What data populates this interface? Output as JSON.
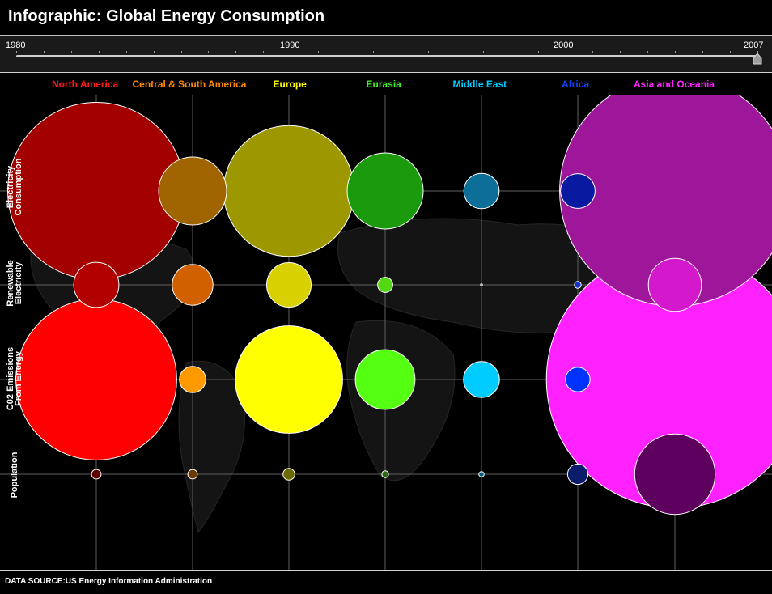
{
  "header": {
    "title": "Infographic: Global Energy Consumption"
  },
  "timeline": {
    "labels": [
      "1980",
      "1990",
      "2000",
      "2007"
    ],
    "start_year": 1980,
    "end_year": 2007,
    "selected_year": 2007,
    "track_color": "#cfcfcf",
    "handle_color": "#9e9e9e"
  },
  "footer": {
    "source": "DATA SOURCE:US Energy Information Administration"
  },
  "chart_data": {
    "type": "bubble-matrix",
    "rows": [
      "Electricity Consumption",
      "Renewable Electricity",
      "C02 Emissions From Energy",
      "Population"
    ],
    "row_labels_display": [
      "Electricity\nConsumption",
      "Renewable\nElectricity",
      "C02 Emissions\nFrom Energy",
      "Population"
    ],
    "columns": [
      {
        "name": "North America",
        "color": "#ff1a1a"
      },
      {
        "name": "Central & South America",
        "color": "#ff8a00"
      },
      {
        "name": "Europe",
        "color": "#ffff00"
      },
      {
        "name": "Eurasia",
        "color": "#44ee22"
      },
      {
        "name": "Middle East",
        "color": "#00ccff"
      },
      {
        "name": "Africa",
        "color": "#1144ff"
      },
      {
        "name": "Asia and Oceania",
        "color": "#ff22ff"
      }
    ],
    "bubble_fills": [
      [
        "#a30000",
        "#a06400",
        "#9d9800",
        "#1c9a0d",
        "#0d6e98",
        "#0a1aa0",
        "#9e1699"
      ],
      [
        "#b20000",
        "#d06000",
        "#d8d000",
        "#54d814",
        "#00aadd",
        "#1133cc",
        "#d418cc"
      ],
      [
        "#ff0000",
        "#ff9900",
        "#ffff00",
        "#55ff11",
        "#00ccff",
        "#0033ff",
        "#ff22ff"
      ],
      [
        "#5e0000",
        "#6a3a00",
        "#6a6a00",
        "#2a6a12",
        "#005a82",
        "#0a1c6a",
        "#5e005e"
      ]
    ],
    "values": [
      [
        6.8,
        1.0,
        3.7,
        1.25,
        0.27,
        0.26,
        11.5
      ],
      [
        0.44,
        0.36,
        0.43,
        0.05,
        0.001,
        0.01,
        0.61
      ],
      [
        5.6,
        0.15,
        2.5,
        0.77,
        0.28,
        0.13,
        14.3
      ],
      [
        0.02,
        0.02,
        0.03,
        0.01,
        0.006,
        0.09,
        1.4
      ]
    ],
    "value_note": "relative bubble size (bubble area proportional to value)",
    "grid": true,
    "legend_position": "top"
  }
}
